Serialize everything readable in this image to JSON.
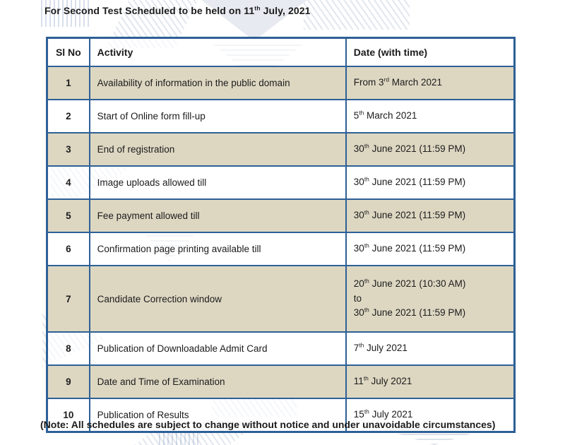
{
  "page": {
    "title": "For Second Test Scheduled to be held on 11th July, 2021",
    "note": "(Note: All schedules are subject to change without notice and under unavoidable circumstances)"
  },
  "table": {
    "headers": {
      "sl": "Sl No",
      "activity": "Activity",
      "date": "Date (with time)"
    },
    "rows": [
      {
        "sl": "1",
        "activity": "Availability of information in the public domain",
        "date": "From 3rd March 2021"
      },
      {
        "sl": "2",
        "activity": "Start of Online form fill-up",
        "date": "5th March 2021"
      },
      {
        "sl": "3",
        "activity": "End of registration",
        "date": "30th June 2021 (11:59 PM)"
      },
      {
        "sl": "4",
        "activity": "Image uploads allowed till",
        "date": "30th June 2021 (11:59 PM)"
      },
      {
        "sl": "5",
        "activity": "Fee payment allowed till",
        "date": "30th June 2021 (11:59 PM)"
      },
      {
        "sl": "6",
        "activity": "Confirmation page printing available till",
        "date": "30th June 2021 (11:59 PM)"
      },
      {
        "sl": "7",
        "activity": "Candidate Correction window",
        "date": "20th June 2021 (10:30 AM)\nto\n30th June 2021 (11:59 PM)"
      },
      {
        "sl": "8",
        "activity": "Publication of Downloadable Admit Card",
        "date": "7th July 2021"
      },
      {
        "sl": "9",
        "activity": "Date and Time of Examination",
        "date": "11th July 2021"
      },
      {
        "sl": "10",
        "activity": "Publication of Results",
        "date": "15th July 2021"
      }
    ]
  },
  "colors": {
    "table_border": "#2d6096",
    "row_shade": "#ddd7c2",
    "text": "#1b1b1b",
    "watermark": "#d8dde8"
  }
}
